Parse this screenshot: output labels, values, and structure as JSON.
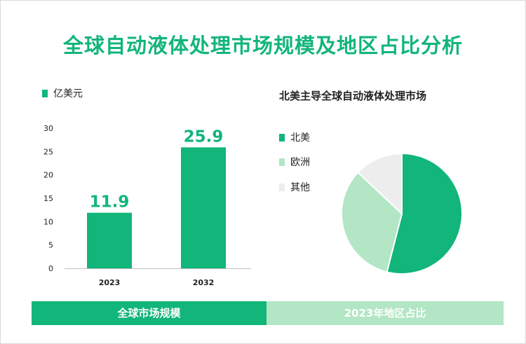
{
  "title": "全球自动液体处理市场规模及地区占比分析",
  "colors": {
    "primary": "#12b57a",
    "light": "#b2e6c4",
    "grey": "#ededed"
  },
  "chart_data": [
    {
      "type": "bar",
      "legend": "亿美元",
      "categories": [
        "2023",
        "2032"
      ],
      "values": [
        11.9,
        25.9
      ],
      "data_labels": [
        "11.9",
        "25.9"
      ],
      "ylim": [
        0,
        30
      ],
      "yticks": [
        0,
        5,
        10,
        15,
        20,
        25,
        30
      ]
    },
    {
      "type": "pie",
      "title": "北美主导全球自动液体处理市场",
      "categories": [
        "北美",
        "欧洲",
        "其他"
      ],
      "values": [
        54,
        33,
        13
      ]
    }
  ],
  "footer": {
    "left": "全球市场规模",
    "right": "2023年地区占比"
  }
}
